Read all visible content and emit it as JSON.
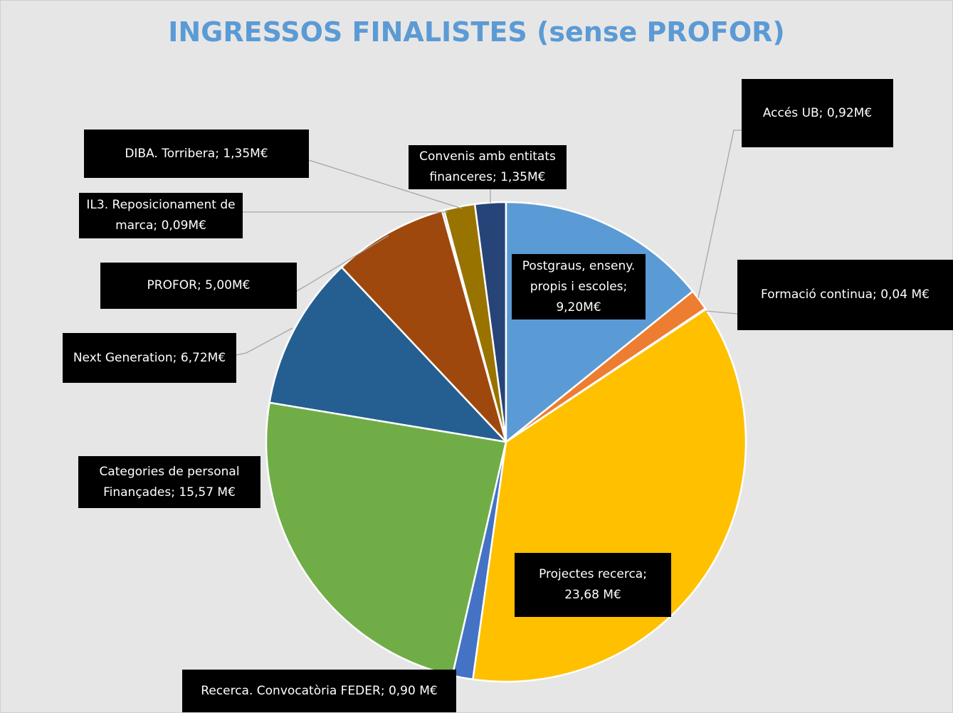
{
  "chart_data": {
    "type": "pie",
    "title": "INGRESSOS FINALISTES (sense PROFOR)",
    "categories": [
      "Postgraus, enseny. propis i escoles;",
      "Accés UB;",
      "Formació continua;",
      "Projectes recerca;",
      "Recerca. Convocatòria FEDER;",
      "Categories de personal Finançades;",
      "Next Generation;",
      "PROFOR;",
      "IL3. Reposicionament de marca;",
      "DIBA. Torribera;",
      "Convenis amb entitats financeres;"
    ],
    "values": [
      9.2,
      0.92,
      0.04,
      23.68,
      0.9,
      15.57,
      6.72,
      5.0,
      0.09,
      1.35,
      1.35
    ],
    "value_labels": [
      "9,20M€",
      "0,92M€",
      "0,04 M€",
      "23,68 M€",
      "0,90 M€",
      "15,57 M€",
      "6,72M€",
      "5,00M€",
      "0,09M€",
      "1,35M€",
      "1,35M€"
    ],
    "colors": [
      "#5b9bd5",
      "#ed7d31",
      "#a5a5a5",
      "#ffc000",
      "#4472c4",
      "#70ad47",
      "#255e91",
      "#9e480e",
      "#636363",
      "#997300",
      "#264478"
    ]
  }
}
